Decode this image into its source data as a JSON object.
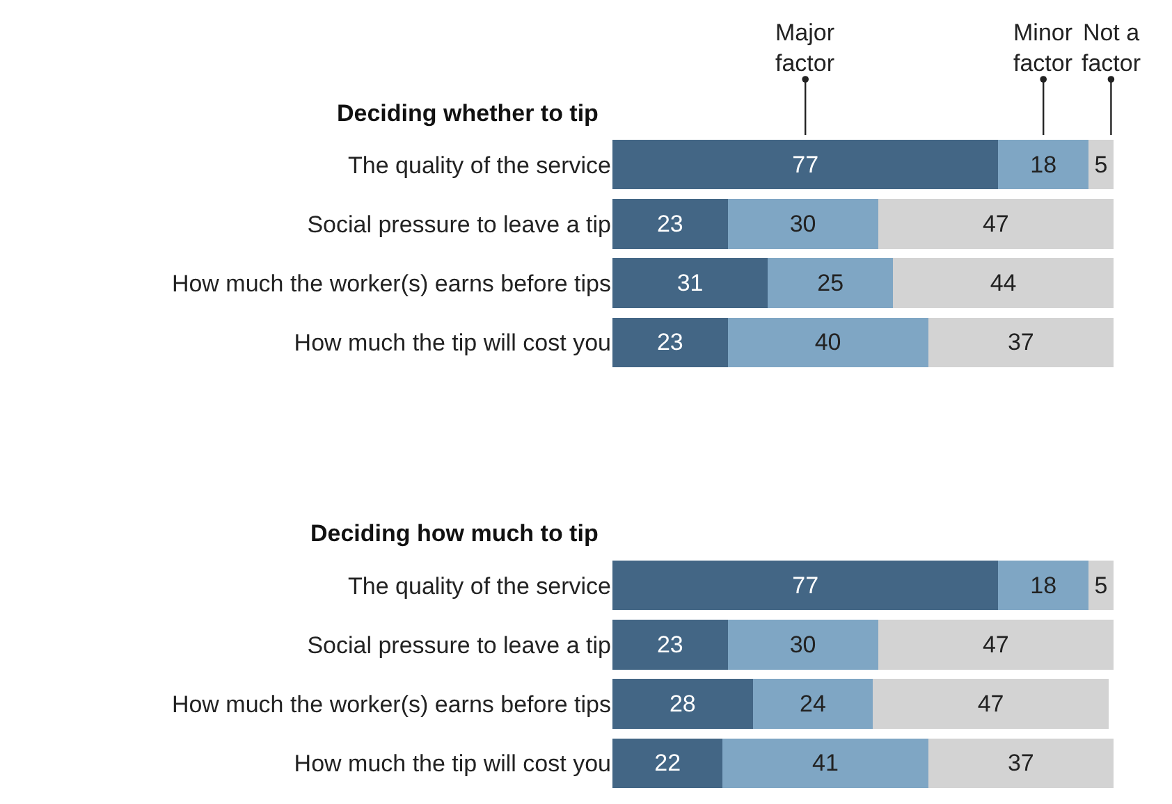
{
  "chart_data": [
    {
      "type": "bar",
      "orientation": "horizontal",
      "stacked": true,
      "data_labels": true,
      "legend": false,
      "tick_labels": "y",
      "title": "Deciding whether to tip",
      "categories": [
        "The quality of the service",
        "Social pressure to leave a tip",
        "How much the worker(s) earns before tips",
        "How much the tip will cost you"
      ],
      "series": [
        {
          "name": "Major factor",
          "color": "#436685",
          "values": [
            77,
            23,
            31,
            23
          ]
        },
        {
          "name": "Minor factor",
          "color": "#7fa6c4",
          "values": [
            18,
            30,
            25,
            40
          ]
        },
        {
          "name": "Not a factor",
          "color": "#d3d3d3",
          "values": [
            5,
            47,
            44,
            37
          ]
        }
      ]
    },
    {
      "type": "bar",
      "orientation": "horizontal",
      "stacked": true,
      "data_labels": true,
      "legend": false,
      "tick_labels": "y",
      "title": "Deciding how much to tip",
      "categories": [
        "The quality of the service",
        "Social pressure to leave a tip",
        "How much the worker(s) earns before tips",
        "How much the tip will cost you"
      ],
      "series": [
        {
          "color": "#436685",
          "values": [
            77,
            23,
            28,
            22
          ]
        },
        {
          "color": "#7fa6c4",
          "values": [
            18,
            30,
            24,
            41
          ]
        },
        {
          "color": "#d3d3d3",
          "values": [
            5,
            47,
            47,
            37
          ]
        }
      ]
    }
  ]
}
